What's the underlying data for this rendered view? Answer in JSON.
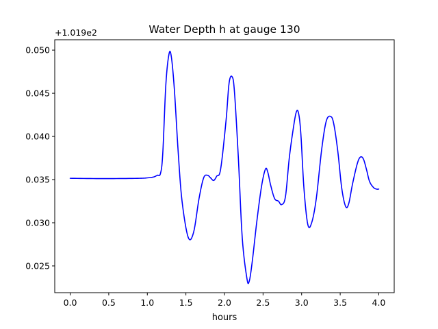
{
  "chart_data": {
    "type": "line",
    "title": "Water Depth h at gauge 130",
    "xlabel": "hours",
    "ylabel": "",
    "y_offset_label": "+1.019e2",
    "xlim": [
      -0.2,
      4.2
    ],
    "ylim": [
      0.0219,
      0.0512
    ],
    "xticks": [
      0.0,
      0.5,
      1.0,
      1.5,
      2.0,
      2.5,
      3.0,
      3.5,
      4.0
    ],
    "xtick_labels": [
      "0.0",
      "0.5",
      "1.0",
      "1.5",
      "2.0",
      "2.5",
      "3.0",
      "3.5",
      "4.0"
    ],
    "yticks": [
      0.025,
      0.03,
      0.035,
      0.04,
      0.045,
      0.05
    ],
    "ytick_labels": [
      "0.025",
      "0.030",
      "0.035",
      "0.040",
      "0.045",
      "0.050"
    ],
    "grid": false,
    "legend": "none",
    "series": [
      {
        "color": "#0000ff",
        "x": [
          0.0,
          0.3,
          0.6,
          0.9,
          1.0,
          1.08,
          1.13,
          1.17,
          1.2,
          1.24,
          1.28,
          1.31,
          1.35,
          1.4,
          1.45,
          1.53,
          1.6,
          1.67,
          1.73,
          1.78,
          1.82,
          1.86,
          1.9,
          1.95,
          2.02,
          2.06,
          2.1,
          2.13,
          2.18,
          2.23,
          2.29,
          2.32,
          2.36,
          2.42,
          2.48,
          2.53,
          2.56,
          2.6,
          2.65,
          2.7,
          2.74,
          2.79,
          2.84,
          2.89,
          2.93,
          2.96,
          2.99,
          3.03,
          3.08,
          3.13,
          3.19,
          3.26,
          3.32,
          3.38,
          3.42,
          3.47,
          3.52,
          3.57,
          3.61,
          3.66,
          3.72,
          3.76,
          3.8,
          3.84,
          3.88,
          3.93,
          3.97,
          4.0
        ],
        "y": [
          0.03515,
          0.03512,
          0.03512,
          0.03515,
          0.0352,
          0.0353,
          0.0355,
          0.0357,
          0.038,
          0.046,
          0.0495,
          0.0493,
          0.0455,
          0.0382,
          0.0325,
          0.0283,
          0.0289,
          0.0328,
          0.0352,
          0.0355,
          0.0352,
          0.0349,
          0.0354,
          0.0362,
          0.0418,
          0.0462,
          0.0469,
          0.0451,
          0.0375,
          0.0283,
          0.0236,
          0.0232,
          0.0255,
          0.0302,
          0.0342,
          0.0362,
          0.0359,
          0.0343,
          0.0328,
          0.0325,
          0.0321,
          0.033,
          0.0375,
          0.0408,
          0.0428,
          0.0427,
          0.0403,
          0.034,
          0.0298,
          0.03,
          0.0328,
          0.0385,
          0.0418,
          0.0423,
          0.0413,
          0.0382,
          0.034,
          0.0319,
          0.0322,
          0.0345,
          0.0368,
          0.0376,
          0.0374,
          0.0362,
          0.0348,
          0.0341,
          0.0339,
          0.0339
        ]
      }
    ]
  }
}
